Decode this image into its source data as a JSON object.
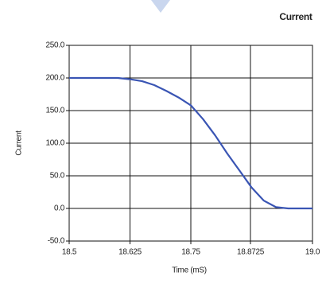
{
  "chart_data": {
    "type": "line",
    "title": "Current",
    "xlabel": "Time (mS)",
    "ylabel": "Current",
    "x": [
      18.5,
      18.6,
      18.625,
      18.65,
      18.675,
      18.7,
      18.725,
      18.75,
      18.775,
      18.8,
      18.825,
      18.85,
      18.875,
      18.9,
      18.925,
      18.95,
      19.0
    ],
    "series": [
      {
        "name": "Current",
        "color": "#3a55b4",
        "values": [
          200,
          200,
          198,
          195,
          189,
          180,
          170,
          158,
          137,
          112,
          84,
          58,
          32,
          12,
          2,
          0,
          0
        ]
      }
    ],
    "xlim": [
      18.5,
      19.0
    ],
    "xticks": [
      18.5,
      {
        "value": 18.625,
        "label": "18.625"
      },
      {
        "value": 18.75,
        "label": "18.75"
      },
      {
        "value": 18.8725,
        "label": "18.8725"
      },
      {
        "value": 19,
        "label": "19.0"
      }
    ],
    "ylim": [
      -50,
      250
    ],
    "yticks": [
      {
        "value": -50,
        "label": "-50.0"
      },
      {
        "value": 0,
        "label": "0.0"
      },
      {
        "value": 50,
        "label": "50.0"
      },
      {
        "value": 100,
        "label": "100.0"
      },
      {
        "value": 150,
        "label": "150.0"
      },
      {
        "value": 200,
        "label": "200.0"
      },
      {
        "value": 250,
        "label": "250.0"
      }
    ],
    "grid": true
  }
}
